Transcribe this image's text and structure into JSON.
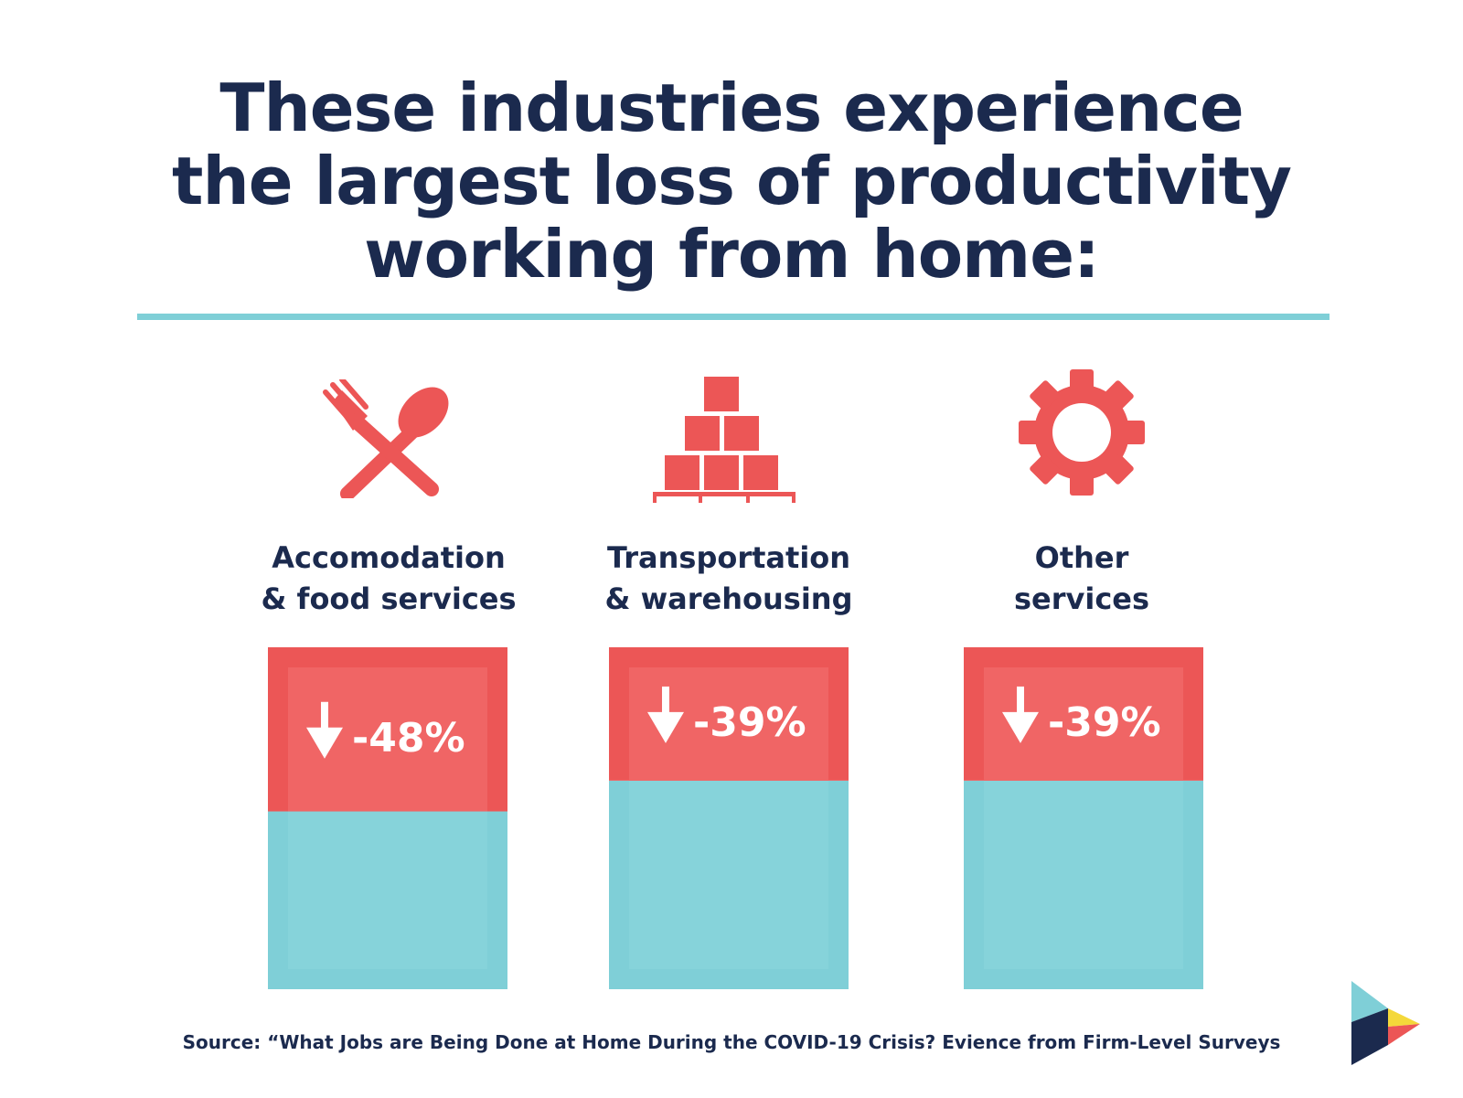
{
  "title": {
    "lines": [
      "These industries experience",
      "the largest loss of productivity",
      "working from home:"
    ]
  },
  "chart_data": {
    "type": "bar",
    "categories": [
      "Accomodation & food services",
      "Transportation & warehousing",
      "Other services"
    ],
    "values": [
      -48,
      -39,
      -39
    ],
    "value_labels": [
      "-48%",
      "-39%",
      "-39%"
    ],
    "ylim": [
      -100,
      0
    ],
    "grid": false,
    "legend": "none"
  },
  "industries": [
    {
      "label_lines": [
        "Accomodation",
        "& food services"
      ],
      "icon": "fork-and-spoon-icon"
    },
    {
      "label_lines": [
        "Transportation",
        "& warehousing"
      ],
      "icon": "stacked-boxes-pallet-icon"
    },
    {
      "label_lines": [
        "Other",
        "services"
      ],
      "icon": "gear-icon"
    }
  ],
  "source": "Source: “What Jobs are Being Done at Home During the COVID-19 Crisis? Evience from Firm-Level Surveys",
  "colors": {
    "navy": "#1b2a4e",
    "red": "#ec5656",
    "red_inner": "#f06565",
    "teal": "#7fcfd7",
    "teal_inner": "#86d3da",
    "yellow": "#f4d83a"
  }
}
